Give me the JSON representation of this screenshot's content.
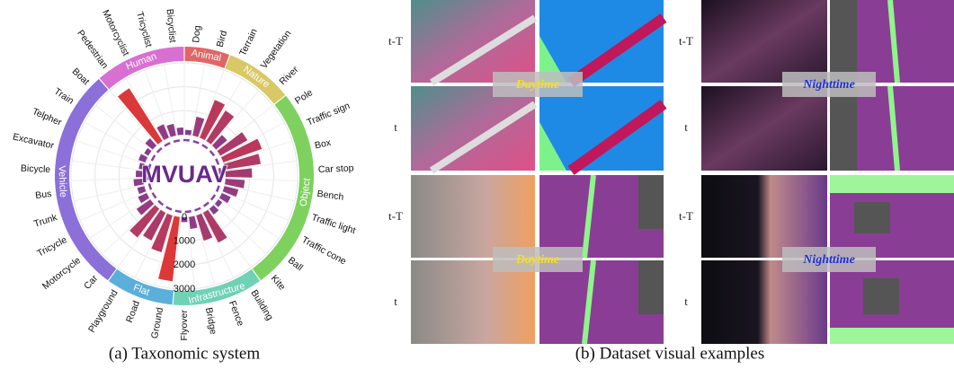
{
  "chart_data": {
    "type": "radial_bar",
    "center_label": "MVUAV",
    "groups": [
      {
        "name": "Animal",
        "color": "#e06666",
        "categories": [
          "Dog",
          "Bird"
        ],
        "values": [
          200,
          800
        ]
      },
      {
        "name": "Nature",
        "color": "#d9c866",
        "categories": [
          "Terrain",
          "Vegetation",
          "River"
        ],
        "values": [
          1700,
          1500,
          600
        ]
      },
      {
        "name": "Object",
        "color": "#7ed15f",
        "categories": [
          "Pole",
          "Traffic sign",
          "Box",
          "Car stop",
          "Bench",
          "Traffic light",
          "Traffic cone",
          "Ball",
          "Kite"
        ],
        "values": [
          1300,
          1700,
          1500,
          1100,
          800,
          600,
          400,
          200,
          300
        ]
      },
      {
        "name": "Infrastructure",
        "color": "#6fd2b4",
        "categories": [
          "Building",
          "Fence",
          "Bridge",
          "Flyover"
        ],
        "values": [
          1400,
          1100,
          500,
          200
        ]
      },
      {
        "name": "Flat",
        "color": "#5aafdb",
        "categories": [
          "Ground",
          "Road",
          "Playground"
        ],
        "values": [
          2700,
          1600,
          1300
        ]
      },
      {
        "name": "Vehicle",
        "color": "#8b70d9",
        "categories": [
          "Car",
          "Motorcycle",
          "Tricycle",
          "Trunk",
          "Bus",
          "Bicycle",
          "Excavator",
          "Telpher",
          "Train",
          "Boat"
        ],
        "values": [
          1500,
          700,
          400,
          300,
          400,
          300,
          200,
          300,
          200,
          400
        ]
      },
      {
        "name": "Human",
        "color": "#d870d2",
        "categories": [
          "Pedestrian",
          "Motorcyclist",
          "Tricyclist",
          "Bicyclist"
        ],
        "values": [
          2600,
          600,
          500,
          300
        ]
      }
    ],
    "ylim": [
      0,
      3000
    ],
    "yticks": [
      0,
      1000,
      2000,
      3000
    ],
    "grid": true,
    "bar_colors": [
      "#7d3c98",
      "#e8372c"
    ]
  },
  "examples": {
    "blocks": [
      {
        "row_labels": [
          "t-T",
          "t",
          "t-T",
          "t"
        ],
        "overlays": [
          "Daytime",
          "Daytime"
        ]
      },
      {
        "row_labels": [
          "t-T",
          "t",
          "t-T",
          "t"
        ],
        "overlays": [
          "Nighttime",
          "Nighttime"
        ]
      }
    ]
  },
  "captions": [
    "(a) Taxonomic system",
    "(b) Dataset visual examples"
  ]
}
